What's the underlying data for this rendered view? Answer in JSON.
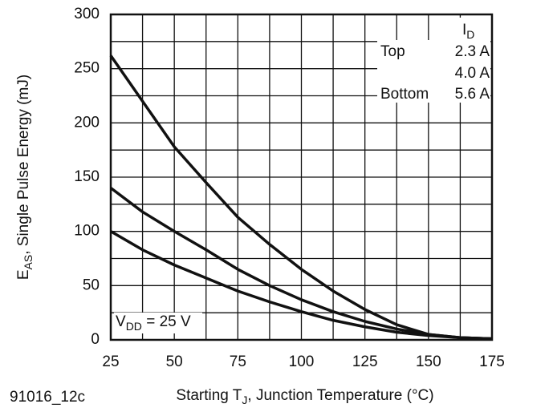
{
  "chart_data": {
    "type": "line",
    "ylabel": {
      "main": "E",
      "sub": "AS",
      "rest": ", Single Pulse Energy (mJ)"
    },
    "xlabel": {
      "main": "Starting T",
      "sub": "J",
      "rest": ", Junction Temperature (°C)"
    },
    "footnote": "91016_12c",
    "annotation": {
      "main": "V",
      "sub": "DD",
      "rest": " = 25 V"
    },
    "legend": {
      "header": {
        "main": "I",
        "sub": "D"
      },
      "top": "Top",
      "bottom": "Bottom"
    },
    "x": [
      25,
      37.5,
      50,
      62.5,
      75,
      87.5,
      100,
      112.5,
      125,
      137.5,
      150,
      162.5,
      175
    ],
    "series": [
      {
        "name": "2.3 A",
        "color": "#111111",
        "values": [
          262,
          220,
          178,
          145,
          113,
          88,
          65,
          45,
          28,
          14,
          5,
          2,
          1
        ]
      },
      {
        "name": "4.0 A",
        "color": "#111111",
        "values": [
          140,
          118,
          100,
          83,
          65,
          50,
          37,
          26,
          17,
          10,
          5,
          2,
          1
        ]
      },
      {
        "name": "5.6 A",
        "color": "#111111",
        "values": [
          100,
          83,
          69,
          57,
          45,
          35,
          26,
          18,
          12,
          7,
          4,
          2,
          1
        ]
      }
    ],
    "xlim": [
      25,
      175
    ],
    "xticks": [
      25,
      50,
      75,
      100,
      125,
      150,
      175
    ],
    "ylim": [
      0,
      300
    ],
    "yticks": [
      0,
      50,
      100,
      150,
      200,
      250,
      300
    ],
    "xgrid_minor": [
      37.5,
      62.5,
      87.5,
      112.5,
      137.5,
      162.5
    ],
    "ygrid_minor": [
      25,
      75,
      125,
      175,
      225,
      275
    ],
    "grid": true
  }
}
